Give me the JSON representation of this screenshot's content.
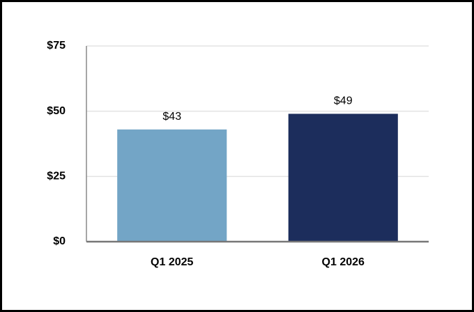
{
  "chart_data": {
    "type": "bar",
    "categories": [
      "Q1 2025",
      "Q1 2026"
    ],
    "values": [
      43,
      49
    ],
    "value_labels": [
      "$43",
      "$49"
    ],
    "colors": [
      "#73a5c6",
      "#1c2d5c"
    ],
    "ylim": [
      0,
      75
    ],
    "yticks": [
      {
        "value": 0,
        "label": "$0"
      },
      {
        "value": 25,
        "label": "$25"
      },
      {
        "value": 50,
        "label": "$50"
      },
      {
        "value": 75,
        "label": "$75"
      }
    ],
    "grid": true
  }
}
